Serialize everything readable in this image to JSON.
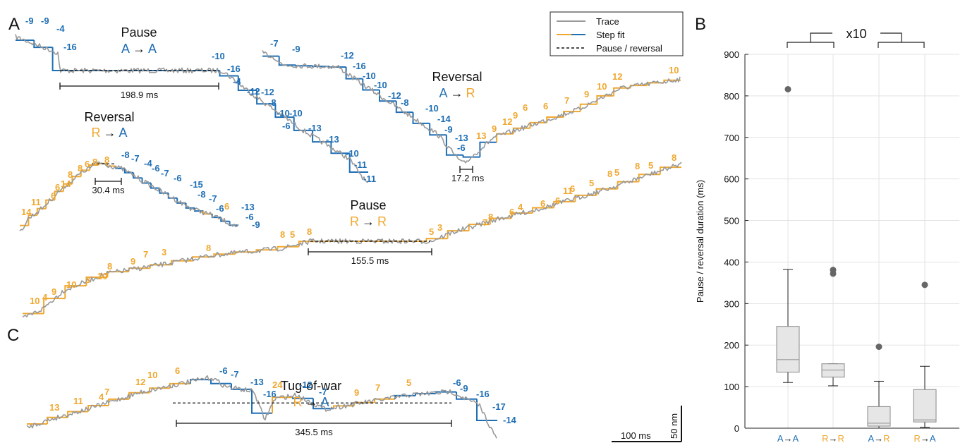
{
  "panels": {
    "a": "A",
    "b": "B",
    "c": "C"
  },
  "colors": {
    "trace": "#999999",
    "fit_anterograde": "#1f6fb5",
    "fit_retrograde": "#f0a830",
    "pause_line": "#111111"
  },
  "legend": {
    "trace": "Trace",
    "step_fit": "Step fit",
    "pause": "Pause / reversal"
  },
  "scalebars": {
    "time": "100 ms",
    "distance": "50 nm"
  },
  "traces": [
    {
      "id": "pause-aa",
      "title": "Pause",
      "from": "A",
      "arrow": "→",
      "to": "A",
      "from_color": "blue",
      "to_color": "blue",
      "duration": "198.9 ms",
      "steps": [
        {
          "label": "-9",
          "color": "blue"
        },
        {
          "label": "-9",
          "color": "blue"
        },
        {
          "label": "-4",
          "color": "blue"
        },
        {
          "label": "-16",
          "color": "blue"
        },
        {
          "label": "-10",
          "color": "blue"
        },
        {
          "label": "-16",
          "color": "blue"
        },
        {
          "label": "-4",
          "color": "blue"
        },
        {
          "label": "-12",
          "color": "blue"
        },
        {
          "label": "-12",
          "color": "blue"
        },
        {
          "label": "-8",
          "color": "blue"
        },
        {
          "label": "-10",
          "color": "blue"
        },
        {
          "label": "-10",
          "color": "blue"
        },
        {
          "label": "-6",
          "color": "blue"
        },
        {
          "label": "-13",
          "color": "blue"
        },
        {
          "label": "-13",
          "color": "blue"
        },
        {
          "label": "-10",
          "color": "blue"
        },
        {
          "label": "-11",
          "color": "blue"
        },
        {
          "label": "-11",
          "color": "blue"
        }
      ]
    },
    {
      "id": "reversal-ar",
      "title": "Reversal",
      "from": "A",
      "arrow": "→",
      "to": "R",
      "from_color": "blue",
      "to_color": "orange",
      "duration": "17.2 ms",
      "steps": [
        {
          "label": "-7",
          "color": "blue"
        },
        {
          "label": "-9",
          "color": "blue"
        },
        {
          "label": "-12",
          "color": "blue"
        },
        {
          "label": "-16",
          "color": "blue"
        },
        {
          "label": "-10",
          "color": "blue"
        },
        {
          "label": "-10",
          "color": "blue"
        },
        {
          "label": "-12",
          "color": "blue"
        },
        {
          "label": "-8",
          "color": "blue"
        },
        {
          "label": "-10",
          "color": "blue"
        },
        {
          "label": "-14",
          "color": "blue"
        },
        {
          "label": "-9",
          "color": "blue"
        },
        {
          "label": "-13",
          "color": "blue"
        },
        {
          "label": "-6",
          "color": "blue"
        },
        {
          "label": "13",
          "color": "orange"
        },
        {
          "label": "9",
          "color": "orange"
        },
        {
          "label": "12",
          "color": "orange"
        },
        {
          "label": "9",
          "color": "orange"
        },
        {
          "label": "6",
          "color": "orange"
        },
        {
          "label": "6",
          "color": "orange"
        },
        {
          "label": "7",
          "color": "orange"
        },
        {
          "label": "9",
          "color": "orange"
        },
        {
          "label": "10",
          "color": "orange"
        },
        {
          "label": "12",
          "color": "orange"
        },
        {
          "label": "10",
          "color": "orange"
        }
      ]
    },
    {
      "id": "reversal-ra",
      "title": "Reversal",
      "from": "R",
      "arrow": "→",
      "to": "A",
      "from_color": "orange",
      "to_color": "blue",
      "duration": "30.4 ms",
      "steps": [
        {
          "label": "14",
          "color": "orange"
        },
        {
          "label": "11",
          "color": "orange"
        },
        {
          "label": "6",
          "color": "orange"
        },
        {
          "label": "6",
          "color": "orange"
        },
        {
          "label": "14",
          "color": "orange"
        },
        {
          "label": "8",
          "color": "orange"
        },
        {
          "label": "8",
          "color": "orange"
        },
        {
          "label": "6",
          "color": "orange"
        },
        {
          "label": "8",
          "color": "orange"
        },
        {
          "label": "8",
          "color": "orange"
        },
        {
          "label": "-8",
          "color": "blue"
        },
        {
          "label": "-7",
          "color": "blue"
        },
        {
          "label": "-4",
          "color": "blue"
        },
        {
          "label": "-6",
          "color": "blue"
        },
        {
          "label": "-7",
          "color": "blue"
        },
        {
          "label": "-6",
          "color": "blue"
        },
        {
          "label": "-15",
          "color": "blue"
        },
        {
          "label": "-8",
          "color": "blue"
        },
        {
          "label": "-7",
          "color": "blue"
        },
        {
          "label": "-6",
          "color": "blue"
        },
        {
          "label": "6",
          "color": "orange"
        },
        {
          "label": "-13",
          "color": "blue"
        },
        {
          "label": "-6",
          "color": "blue"
        },
        {
          "label": "-9",
          "color": "blue"
        }
      ]
    },
    {
      "id": "pause-rr",
      "title": "Pause",
      "from": "R",
      "arrow": "→",
      "to": "R",
      "from_color": "orange",
      "to_color": "orange",
      "duration": "155.5 ms",
      "steps": [
        {
          "label": "10",
          "color": "orange"
        },
        {
          "label": "4",
          "color": "orange"
        },
        {
          "label": "9",
          "color": "orange"
        },
        {
          "label": "10",
          "color": "orange"
        },
        {
          "label": "3",
          "color": "orange"
        },
        {
          "label": "10",
          "color": "orange"
        },
        {
          "label": "8",
          "color": "orange"
        },
        {
          "label": "9",
          "color": "orange"
        },
        {
          "label": "7",
          "color": "orange"
        },
        {
          "label": "3",
          "color": "orange"
        },
        {
          "label": "8",
          "color": "orange"
        },
        {
          "label": "8",
          "color": "orange"
        },
        {
          "label": "5",
          "color": "orange"
        },
        {
          "label": "8",
          "color": "orange"
        },
        {
          "label": "5",
          "color": "orange"
        },
        {
          "label": "3",
          "color": "orange"
        },
        {
          "label": "7",
          "color": "orange"
        },
        {
          "label": "8",
          "color": "orange"
        },
        {
          "label": "6",
          "color": "orange"
        },
        {
          "label": "4",
          "color": "orange"
        },
        {
          "label": "6",
          "color": "orange"
        },
        {
          "label": "6",
          "color": "orange"
        },
        {
          "label": "11",
          "color": "orange"
        },
        {
          "label": "6",
          "color": "orange"
        },
        {
          "label": "5",
          "color": "orange"
        },
        {
          "label": "8",
          "color": "orange"
        },
        {
          "label": "5",
          "color": "orange"
        },
        {
          "label": "8",
          "color": "orange"
        },
        {
          "label": "5",
          "color": "orange"
        },
        {
          "label": "8",
          "color": "orange"
        }
      ]
    },
    {
      "id": "tug-of-war-ra",
      "title": "Tug-of-war",
      "from": "R",
      "arrow": "→",
      "to": "A",
      "from_color": "orange",
      "to_color": "blue",
      "duration": "345.5 ms",
      "steps": [
        {
          "label": "13",
          "color": "orange"
        },
        {
          "label": "11",
          "color": "orange"
        },
        {
          "label": "4",
          "color": "orange"
        },
        {
          "label": "7",
          "color": "orange"
        },
        {
          "label": "12",
          "color": "orange"
        },
        {
          "label": "10",
          "color": "orange"
        },
        {
          "label": "6",
          "color": "orange"
        },
        {
          "label": "-6",
          "color": "blue"
        },
        {
          "label": "-7",
          "color": "blue"
        },
        {
          "label": "-13",
          "color": "blue"
        },
        {
          "label": "-16",
          "color": "blue"
        },
        {
          "label": "24",
          "color": "orange"
        },
        {
          "label": "-12",
          "color": "blue"
        },
        {
          "label": "-7",
          "color": "blue"
        },
        {
          "label": "9",
          "color": "orange"
        },
        {
          "label": "7",
          "color": "orange"
        },
        {
          "label": "5",
          "color": "orange"
        },
        {
          "label": "-6",
          "color": "blue"
        },
        {
          "label": "-9",
          "color": "blue"
        },
        {
          "label": "-16",
          "color": "blue"
        },
        {
          "label": "-17",
          "color": "blue"
        },
        {
          "label": "-14",
          "color": "blue"
        }
      ]
    }
  ],
  "chart_data": {
    "type": "box",
    "ylabel": "Pause / reversal duration (ms)",
    "ylim": [
      0,
      900
    ],
    "yticks": [
      0,
      100,
      200,
      300,
      400,
      500,
      600,
      700,
      800,
      900
    ],
    "grid": true,
    "bracket_label": "x10",
    "categories": [
      {
        "from": "A",
        "arrow": "→",
        "to": "A",
        "from_color": "blue",
        "to_color": "blue"
      },
      {
        "from": "R",
        "arrow": "→",
        "to": "R",
        "from_color": "orange",
        "to_color": "orange"
      },
      {
        "from": "A",
        "arrow": "→",
        "to": "R",
        "from_color": "blue",
        "to_color": "orange"
      },
      {
        "from": "R",
        "arrow": "→",
        "to": "A",
        "from_color": "orange",
        "to_color": "blue"
      }
    ],
    "boxes": [
      {
        "whisker_low": 110,
        "q1": 135,
        "median": 165,
        "q3": 245,
        "whisker_high": 382,
        "outliers": [
          816
        ]
      },
      {
        "whisker_low": 102,
        "q1": 123,
        "median": 140,
        "q3": 155,
        "whisker_high": 155,
        "outliers": [
          372,
          381
        ]
      },
      {
        "whisker_low": 0,
        "q1": 5,
        "median": 12,
        "q3": 52,
        "whisker_high": 113,
        "outliers": [
          196
        ]
      },
      {
        "whisker_low": 2,
        "q1": 15,
        "median": 20,
        "q3": 93,
        "whisker_high": 149,
        "outliers": [
          345
        ]
      }
    ]
  }
}
